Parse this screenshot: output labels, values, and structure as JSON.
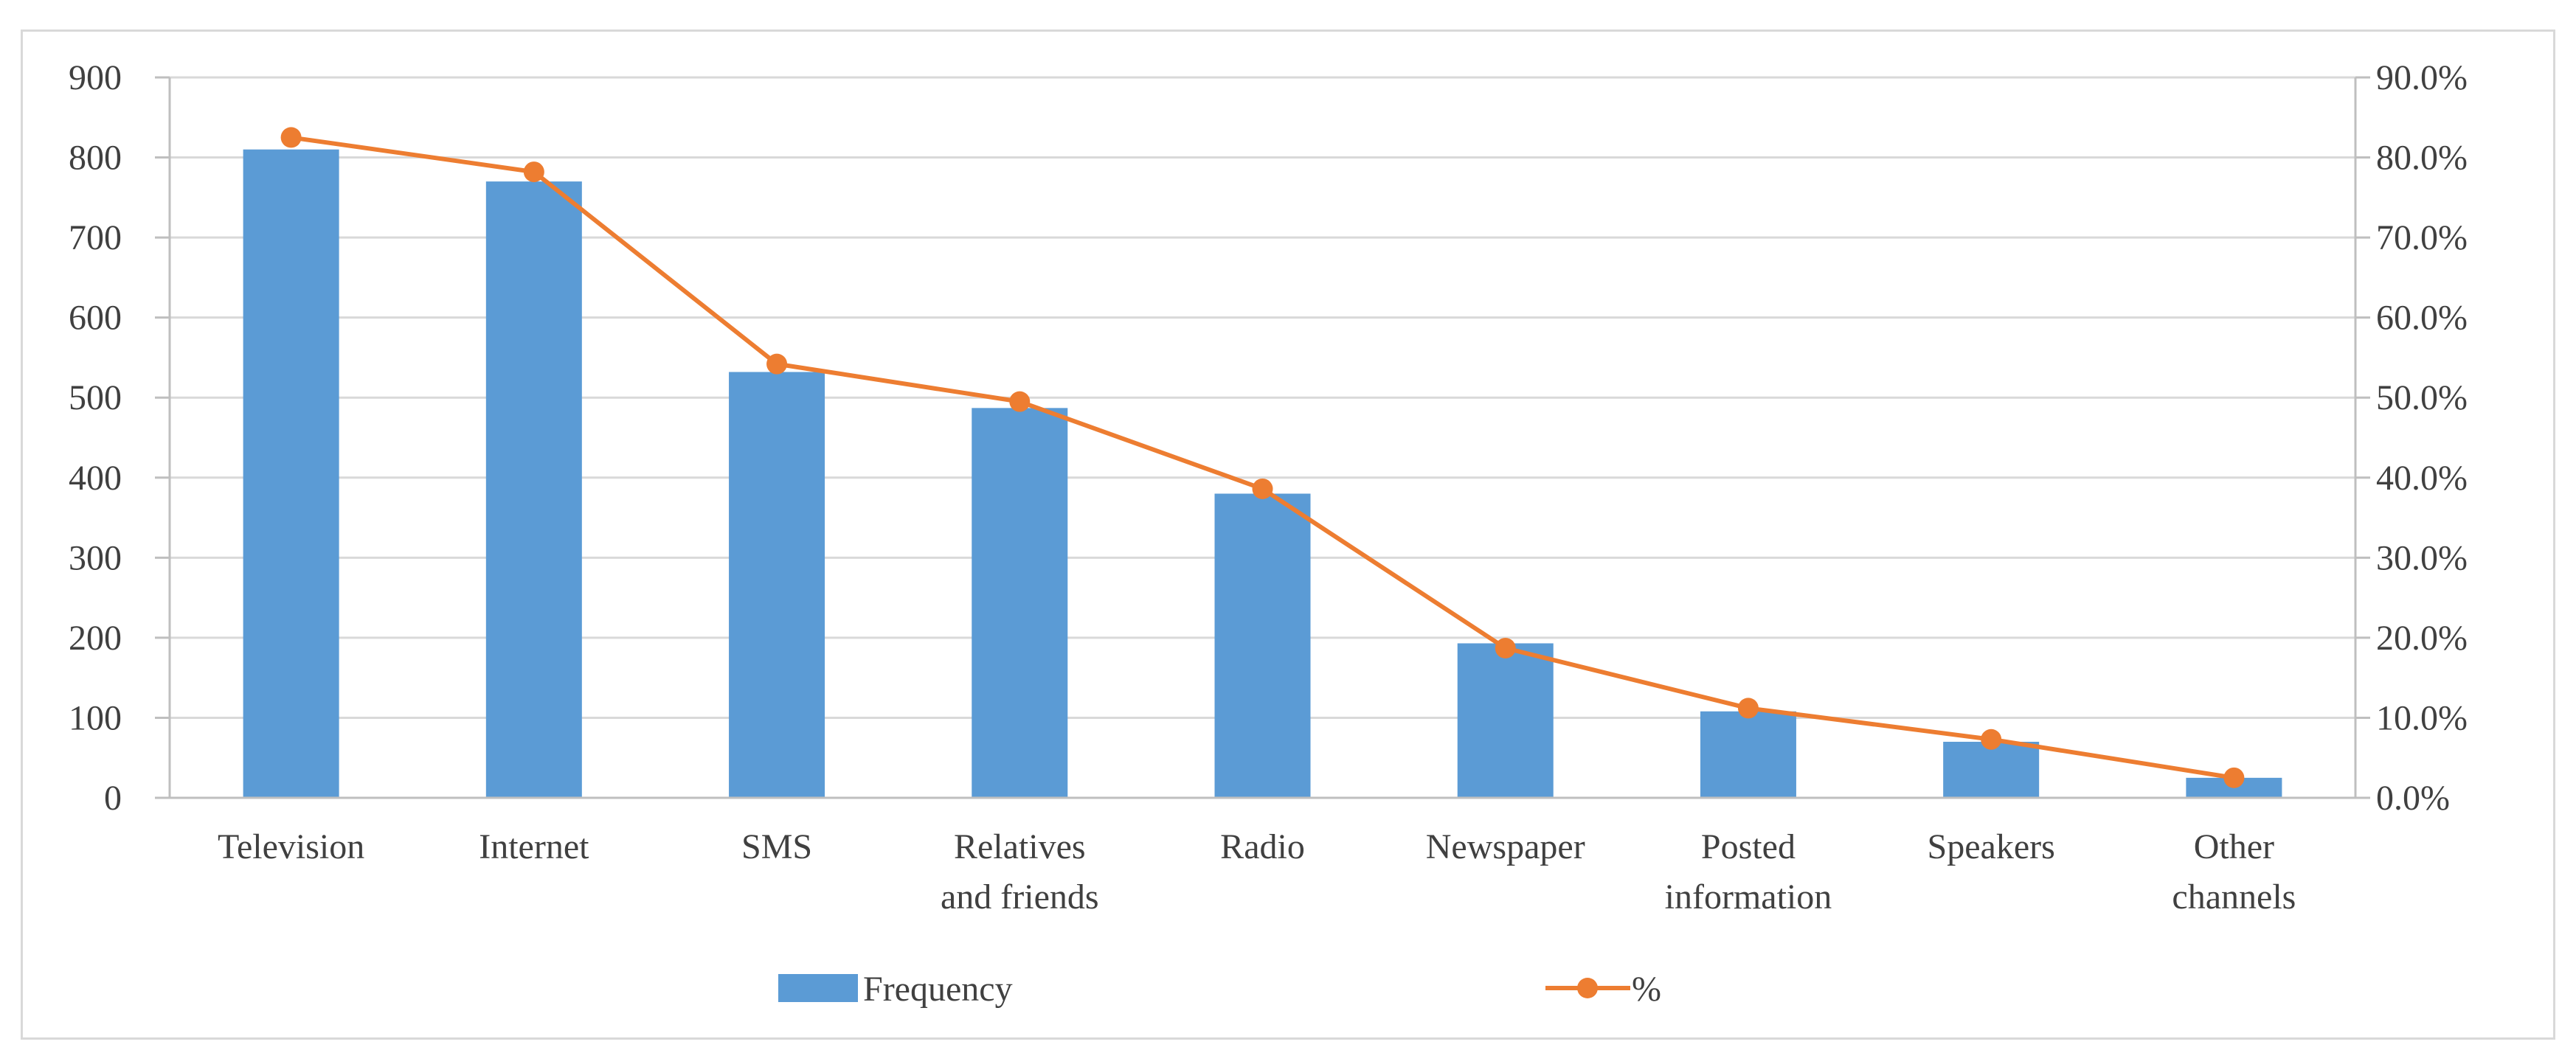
{
  "chart_data": {
    "type": "bar",
    "categories": [
      [
        "Television"
      ],
      [
        "Internet"
      ],
      [
        "SMS"
      ],
      [
        "Relatives",
        "and friends"
      ],
      [
        "Radio"
      ],
      [
        "Newspaper"
      ],
      [
        "Posted",
        "information"
      ],
      [
        "Speakers"
      ],
      [
        "Other",
        "channels"
      ]
    ],
    "series": [
      {
        "name": "Frequency",
        "type": "bar",
        "axis": "left",
        "color": "#5b9bd5",
        "values": [
          810,
          770,
          532,
          487,
          380,
          193,
          108,
          70,
          25
        ]
      },
      {
        "name": "%",
        "type": "line",
        "axis": "right",
        "color": "#ed7d31",
        "values": [
          82.5,
          78.2,
          54.2,
          49.5,
          38.6,
          18.7,
          11.2,
          7.3,
          2.5
        ]
      }
    ],
    "y_left": {
      "ylim": [
        0,
        900
      ],
      "ticks": [
        "0",
        "100",
        "200",
        "300",
        "400",
        "500",
        "600",
        "700",
        "800",
        "900"
      ]
    },
    "y_right": {
      "ylim": [
        0,
        90
      ],
      "ticks": [
        "0.0%",
        "10.0%",
        "20.0%",
        "30.0%",
        "40.0%",
        "50.0%",
        "60.0%",
        "70.0%",
        "80.0%",
        "90.0%"
      ]
    },
    "grid": true,
    "legend_position": "bottom",
    "gridline_color": "#d9d9d9",
    "axis_color": "#bfbfbf"
  }
}
